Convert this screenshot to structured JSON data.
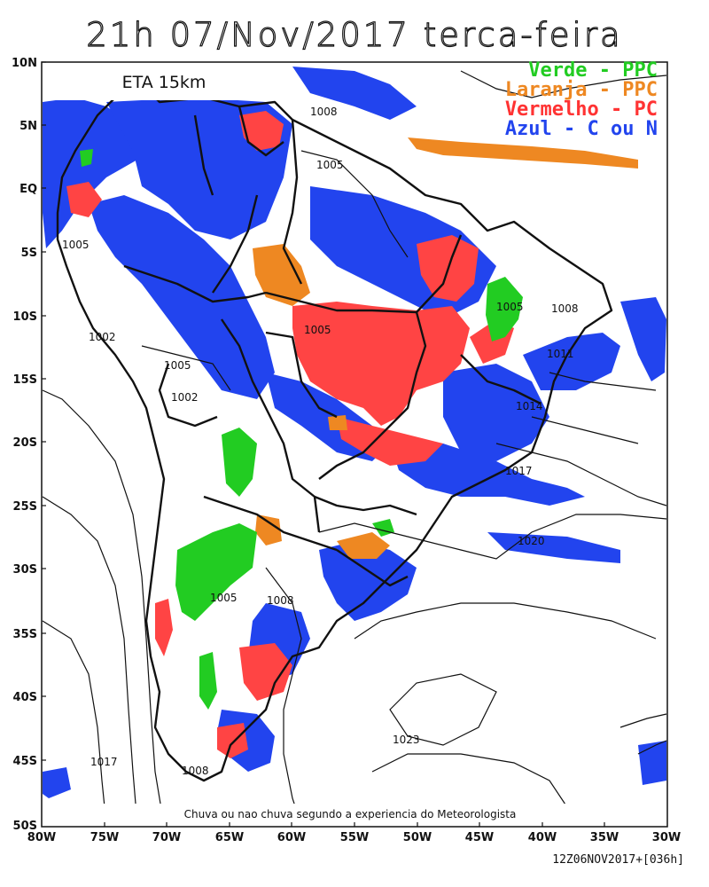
{
  "title": "21h 07/Nov/2017 terca-feira",
  "model_label": "ETA 15km",
  "legend": [
    {
      "text": "Verde - PPC",
      "color": "#22cc22"
    },
    {
      "text": "Laranja - PPC",
      "color": "#ee8822"
    },
    {
      "text": "Vermelho - PC",
      "color": "#ff3333"
    },
    {
      "text": "Azul - C ou N",
      "color": "#2244ee"
    }
  ],
  "caption": "Chuva ou nao chuva segundo a experiencia do Meteorologista",
  "run_code": "12Z06NOV2017+[036h]",
  "lat_labels": [
    "10N",
    "5N",
    "EQ",
    "5S",
    "10S",
    "15S",
    "20S",
    "25S",
    "30S",
    "35S",
    "40S",
    "45S",
    "50S"
  ],
  "lon_labels": [
    "80W",
    "75W",
    "70W",
    "65W",
    "60W",
    "55W",
    "50W",
    "45W",
    "40W",
    "35W",
    "30W"
  ],
  "isobar_labels": [
    "1008",
    "1005",
    "1005",
    "1005",
    "1005",
    "1002",
    "1005",
    "1008",
    "1011",
    "1014",
    "1017",
    "1020",
    "1002",
    "1005",
    "1008",
    "1023",
    "1017",
    "1008"
  ],
  "colors": {
    "green": "#22cc22",
    "orange": "#ee8822",
    "red": "#ff4444",
    "blue": "#2244ee",
    "line": "#111111"
  }
}
